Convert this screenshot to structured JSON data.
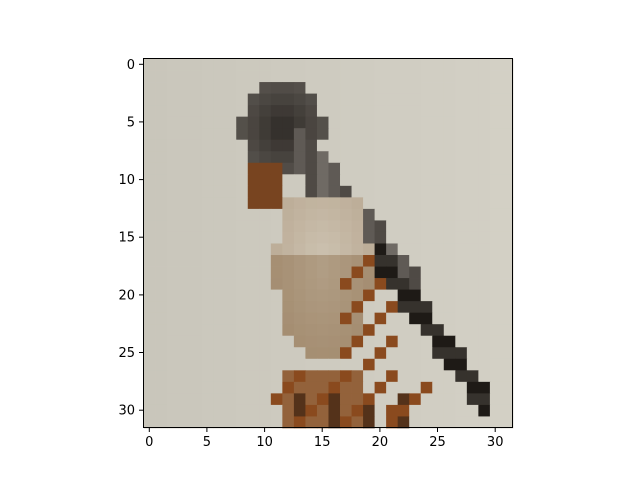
{
  "figure": {
    "kind": "pixelated image displayed on matplotlib-style axes",
    "subject_description": "bird perched on a branch"
  },
  "axes": {
    "x_ticks": [
      "0",
      "5",
      "10",
      "15",
      "20",
      "25",
      "30"
    ],
    "y_ticks": [
      "0",
      "5",
      "10",
      "15",
      "20",
      "25",
      "30"
    ],
    "x_range": [
      -0.5,
      31.5
    ],
    "y_range": [
      -0.5,
      31.5
    ],
    "y_inverted": true,
    "grid": false
  },
  "image": {
    "grid_size": 32,
    "colors": {
      "background": "#c9c6bb",
      "background_light": "#d6d3c8",
      "bird_dark": "#2e2a26",
      "bird_gray": "#6f6a64",
      "breast_light": "#cdc3b2",
      "breast_tan": "#a58e72",
      "rust_brown": "#8a4a1e",
      "branch_dark": "#1e1a16"
    }
  }
}
